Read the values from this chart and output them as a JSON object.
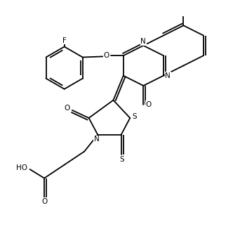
{
  "bg_color": "#ffffff",
  "line_color": "#000000",
  "line_width": 1.5,
  "figsize": [
    3.42,
    3.36
  ],
  "dpi": 100,
  "label_fontsize": 7.5,
  "bond_width": 1.3,
  "xlim": [
    -0.5,
    9.5
  ],
  "ylim": [
    -0.5,
    10.0
  ]
}
